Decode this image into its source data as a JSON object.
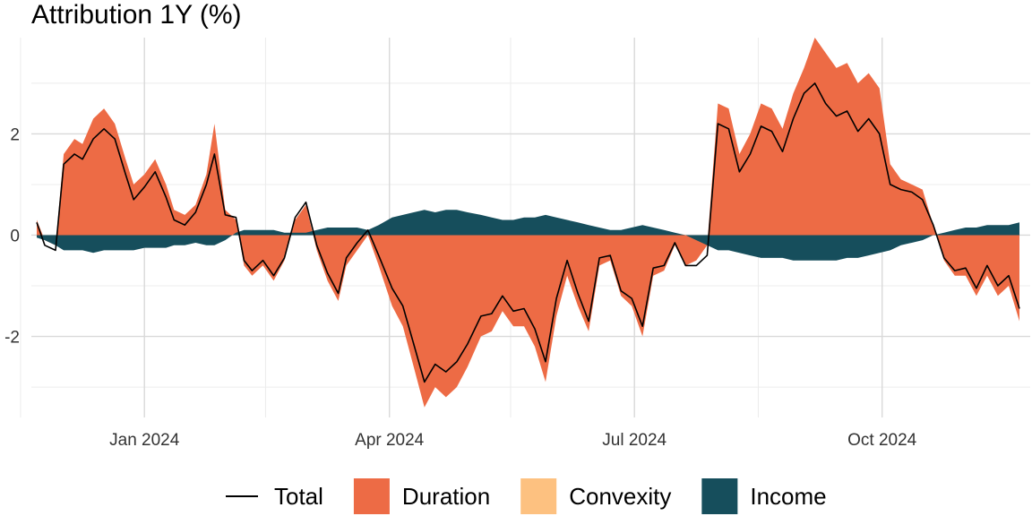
{
  "chart_data": {
    "type": "area",
    "title": "Attribution 1Y (%)",
    "xlabel": "",
    "ylabel": "",
    "x_range": [
      "2023-11-20",
      "2024-11-25"
    ],
    "ylim": [
      -3.6,
      3.9
    ],
    "x_ticks": [
      {
        "date": "2024-01-01",
        "label": "Jan 2024"
      },
      {
        "date": "2024-04-01",
        "label": "Apr 2024"
      },
      {
        "date": "2024-07-01",
        "label": "Jul 2024"
      },
      {
        "date": "2024-10-01",
        "label": "Oct 2024"
      }
    ],
    "x_minor": [
      "2023-11-16",
      "2024-02-15",
      "2024-05-16",
      "2024-08-16"
    ],
    "y_ticks": [
      {
        "value": -2,
        "label": "-2"
      },
      {
        "value": 0,
        "label": "0"
      },
      {
        "value": 2,
        "label": "2"
      }
    ],
    "y_minor": [
      -3,
      -1,
      1,
      3
    ],
    "grid": true,
    "legend_position": "bottom",
    "legend": [
      {
        "name": "Total",
        "kind": "line",
        "color": "#000000"
      },
      {
        "name": "Duration",
        "kind": "fill",
        "color": "#ED6B45"
      },
      {
        "name": "Convexity",
        "kind": "fill",
        "color": "#FDC180"
      },
      {
        "name": "Income",
        "kind": "fill",
        "color": "#164E5C"
      }
    ],
    "series": [
      {
        "name": "Duration",
        "kind": "stacked-area",
        "x": [
          "2023-11-22",
          "2023-11-25",
          "2023-11-29",
          "2023-12-02",
          "2023-12-06",
          "2023-12-09",
          "2023-12-13",
          "2023-12-17",
          "2023-12-21",
          "2023-12-25",
          "2023-12-28",
          "2024-01-01",
          "2024-01-05",
          "2024-01-09",
          "2024-01-12",
          "2024-01-16",
          "2024-01-20",
          "2024-01-24",
          "2024-01-27",
          "2024-01-31",
          "2024-02-04",
          "2024-02-07",
          "2024-02-10",
          "2024-02-14",
          "2024-02-18",
          "2024-02-22",
          "2024-02-26",
          "2024-03-01",
          "2024-03-05",
          "2024-03-09",
          "2024-03-13",
          "2024-03-16",
          "2024-03-20",
          "2024-03-24",
          "2024-03-28",
          "2024-04-02",
          "2024-04-06",
          "2024-04-10",
          "2024-04-14",
          "2024-04-18",
          "2024-04-22",
          "2024-04-26",
          "2024-04-30",
          "2024-05-05",
          "2024-05-09",
          "2024-05-13",
          "2024-05-17",
          "2024-05-21",
          "2024-05-25",
          "2024-05-29",
          "2024-06-02",
          "2024-06-06",
          "2024-06-10",
          "2024-06-14",
          "2024-06-18",
          "2024-06-22",
          "2024-06-26",
          "2024-06-30",
          "2024-07-04",
          "2024-07-08",
          "2024-07-12",
          "2024-07-16",
          "2024-07-20",
          "2024-07-24",
          "2024-07-28",
          "2024-08-01",
          "2024-08-05",
          "2024-08-09",
          "2024-08-13",
          "2024-08-17",
          "2024-08-21",
          "2024-08-25",
          "2024-08-29",
          "2024-09-02",
          "2024-09-06",
          "2024-09-10",
          "2024-09-14",
          "2024-09-18",
          "2024-09-22",
          "2024-09-26",
          "2024-09-30",
          "2024-10-04",
          "2024-10-08",
          "2024-10-12",
          "2024-10-16",
          "2024-10-20",
          "2024-10-24",
          "2024-10-28",
          "2024-11-01",
          "2024-11-05",
          "2024-11-09",
          "2024-11-13",
          "2024-11-17",
          "2024-11-21"
        ],
        "values": [
          0.3,
          -0.1,
          -0.2,
          1.6,
          1.9,
          1.8,
          2.3,
          2.5,
          2.2,
          1.5,
          1.0,
          1.2,
          1.5,
          1.0,
          0.5,
          0.4,
          0.6,
          1.2,
          2.2,
          0.5,
          0.3,
          -0.6,
          -0.8,
          -0.6,
          -0.9,
          -0.5,
          0.3,
          0.6,
          -0.3,
          -0.9,
          -1.3,
          -0.6,
          -0.3,
          0.0,
          -0.6,
          -1.4,
          -1.8,
          -2.6,
          -3.4,
          -3.0,
          -3.2,
          -3.0,
          -2.6,
          -2.0,
          -1.9,
          -1.5,
          -1.8,
          -1.8,
          -2.2,
          -2.9,
          -1.6,
          -0.8,
          -1.4,
          -1.9,
          -0.6,
          -0.5,
          -1.2,
          -1.4,
          -2.0,
          -0.8,
          -0.7,
          -0.2,
          -0.6,
          -0.5,
          -0.2,
          2.6,
          2.5,
          1.6,
          2.0,
          2.6,
          2.5,
          2.1,
          2.8,
          3.3,
          3.9,
          3.6,
          3.3,
          3.4,
          3.0,
          3.2,
          2.9,
          1.4,
          1.1,
          1.0,
          0.9,
          0.2,
          -0.5,
          -0.8,
          -0.8,
          -1.2,
          -0.8,
          -1.2,
          -1.0,
          -1.7
        ]
      },
      {
        "name": "Income",
        "kind": "stacked-area",
        "x": [
          "2023-11-22",
          "2023-11-25",
          "2023-11-29",
          "2023-12-02",
          "2023-12-06",
          "2023-12-09",
          "2023-12-13",
          "2023-12-17",
          "2023-12-21",
          "2023-12-25",
          "2023-12-28",
          "2024-01-01",
          "2024-01-05",
          "2024-01-09",
          "2024-01-12",
          "2024-01-16",
          "2024-01-20",
          "2024-01-24",
          "2024-01-27",
          "2024-01-31",
          "2024-02-04",
          "2024-02-07",
          "2024-02-10",
          "2024-02-14",
          "2024-02-18",
          "2024-02-22",
          "2024-02-26",
          "2024-03-01",
          "2024-03-05",
          "2024-03-09",
          "2024-03-13",
          "2024-03-16",
          "2024-03-20",
          "2024-03-24",
          "2024-03-28",
          "2024-04-02",
          "2024-04-06",
          "2024-04-10",
          "2024-04-14",
          "2024-04-18",
          "2024-04-22",
          "2024-04-26",
          "2024-04-30",
          "2024-05-05",
          "2024-05-09",
          "2024-05-13",
          "2024-05-17",
          "2024-05-21",
          "2024-05-25",
          "2024-05-29",
          "2024-06-02",
          "2024-06-06",
          "2024-06-10",
          "2024-06-14",
          "2024-06-18",
          "2024-06-22",
          "2024-06-26",
          "2024-06-30",
          "2024-07-04",
          "2024-07-08",
          "2024-07-12",
          "2024-07-16",
          "2024-07-20",
          "2024-07-24",
          "2024-07-28",
          "2024-08-01",
          "2024-08-05",
          "2024-08-09",
          "2024-08-13",
          "2024-08-17",
          "2024-08-21",
          "2024-08-25",
          "2024-08-29",
          "2024-09-02",
          "2024-09-06",
          "2024-09-10",
          "2024-09-14",
          "2024-09-18",
          "2024-09-22",
          "2024-09-26",
          "2024-09-30",
          "2024-10-04",
          "2024-10-08",
          "2024-10-12",
          "2024-10-16",
          "2024-10-20",
          "2024-10-24",
          "2024-10-28",
          "2024-11-01",
          "2024-11-05",
          "2024-11-09",
          "2024-11-13",
          "2024-11-17",
          "2024-11-21"
        ],
        "values": [
          -0.05,
          -0.1,
          -0.2,
          -0.3,
          -0.3,
          -0.3,
          -0.35,
          -0.3,
          -0.3,
          -0.3,
          -0.3,
          -0.25,
          -0.25,
          -0.25,
          -0.2,
          -0.2,
          -0.15,
          -0.2,
          -0.2,
          -0.1,
          0.05,
          0.1,
          0.1,
          0.1,
          0.1,
          0.05,
          0.05,
          0.05,
          0.1,
          0.15,
          0.15,
          0.15,
          0.15,
          0.1,
          0.2,
          0.35,
          0.4,
          0.45,
          0.5,
          0.45,
          0.5,
          0.5,
          0.45,
          0.4,
          0.35,
          0.3,
          0.3,
          0.35,
          0.35,
          0.4,
          0.35,
          0.3,
          0.25,
          0.2,
          0.15,
          0.1,
          0.1,
          0.15,
          0.2,
          0.15,
          0.1,
          0.05,
          0.0,
          -0.1,
          -0.2,
          -0.3,
          -0.3,
          -0.35,
          -0.4,
          -0.45,
          -0.45,
          -0.45,
          -0.5,
          -0.5,
          -0.5,
          -0.5,
          -0.5,
          -0.45,
          -0.45,
          -0.4,
          -0.35,
          -0.3,
          -0.2,
          -0.15,
          -0.1,
          0.0,
          0.05,
          0.1,
          0.15,
          0.15,
          0.2,
          0.2,
          0.2,
          0.25
        ]
      },
      {
        "name": "Convexity",
        "kind": "stacked-area",
        "x": [],
        "values": []
      },
      {
        "name": "Total",
        "kind": "line",
        "x": [
          "2023-11-22",
          "2023-11-25",
          "2023-11-29",
          "2023-12-02",
          "2023-12-06",
          "2023-12-09",
          "2023-12-13",
          "2023-12-17",
          "2023-12-21",
          "2023-12-25",
          "2023-12-28",
          "2024-01-01",
          "2024-01-05",
          "2024-01-09",
          "2024-01-12",
          "2024-01-16",
          "2024-01-20",
          "2024-01-24",
          "2024-01-27",
          "2024-01-31",
          "2024-02-04",
          "2024-02-07",
          "2024-02-10",
          "2024-02-14",
          "2024-02-18",
          "2024-02-22",
          "2024-02-26",
          "2024-03-01",
          "2024-03-05",
          "2024-03-09",
          "2024-03-13",
          "2024-03-16",
          "2024-03-20",
          "2024-03-24",
          "2024-03-28",
          "2024-04-02",
          "2024-04-06",
          "2024-04-10",
          "2024-04-14",
          "2024-04-18",
          "2024-04-22",
          "2024-04-26",
          "2024-04-30",
          "2024-05-05",
          "2024-05-09",
          "2024-05-13",
          "2024-05-17",
          "2024-05-21",
          "2024-05-25",
          "2024-05-29",
          "2024-06-02",
          "2024-06-06",
          "2024-06-10",
          "2024-06-14",
          "2024-06-18",
          "2024-06-22",
          "2024-06-26",
          "2024-06-30",
          "2024-07-04",
          "2024-07-08",
          "2024-07-12",
          "2024-07-16",
          "2024-07-20",
          "2024-07-24",
          "2024-07-28",
          "2024-08-01",
          "2024-08-05",
          "2024-08-09",
          "2024-08-13",
          "2024-08-17",
          "2024-08-21",
          "2024-08-25",
          "2024-08-29",
          "2024-09-02",
          "2024-09-06",
          "2024-09-10",
          "2024-09-14",
          "2024-09-18",
          "2024-09-22",
          "2024-09-26",
          "2024-09-30",
          "2024-10-04",
          "2024-10-08",
          "2024-10-12",
          "2024-10-16",
          "2024-10-20",
          "2024-10-24",
          "2024-10-28",
          "2024-11-01",
          "2024-11-05",
          "2024-11-09",
          "2024-11-13",
          "2024-11-17",
          "2024-11-21"
        ],
        "values": [
          0.25,
          -0.2,
          -0.3,
          1.4,
          1.6,
          1.5,
          1.9,
          2.1,
          1.9,
          1.2,
          0.7,
          0.95,
          1.25,
          0.75,
          0.3,
          0.2,
          0.45,
          1.0,
          1.6,
          0.4,
          0.35,
          -0.5,
          -0.7,
          -0.5,
          -0.8,
          -0.45,
          0.35,
          0.65,
          -0.2,
          -0.75,
          -1.15,
          -0.45,
          -0.15,
          0.1,
          -0.4,
          -1.05,
          -1.4,
          -2.15,
          -2.9,
          -2.55,
          -2.7,
          -2.5,
          -2.15,
          -1.6,
          -1.55,
          -1.2,
          -1.5,
          -1.45,
          -1.85,
          -2.5,
          -1.25,
          -0.5,
          -1.15,
          -1.7,
          -0.45,
          -0.4,
          -1.1,
          -1.25,
          -1.8,
          -0.65,
          -0.6,
          -0.15,
          -0.6,
          -0.6,
          -0.4,
          2.2,
          2.1,
          1.25,
          1.6,
          2.15,
          2.05,
          1.65,
          2.3,
          2.8,
          3.0,
          2.6,
          2.35,
          2.45,
          2.05,
          2.3,
          2.0,
          1.0,
          0.9,
          0.85,
          0.7,
          0.2,
          -0.45,
          -0.7,
          -0.65,
          -1.05,
          -0.6,
          -1.0,
          -0.8,
          -1.45
        ]
      }
    ]
  }
}
